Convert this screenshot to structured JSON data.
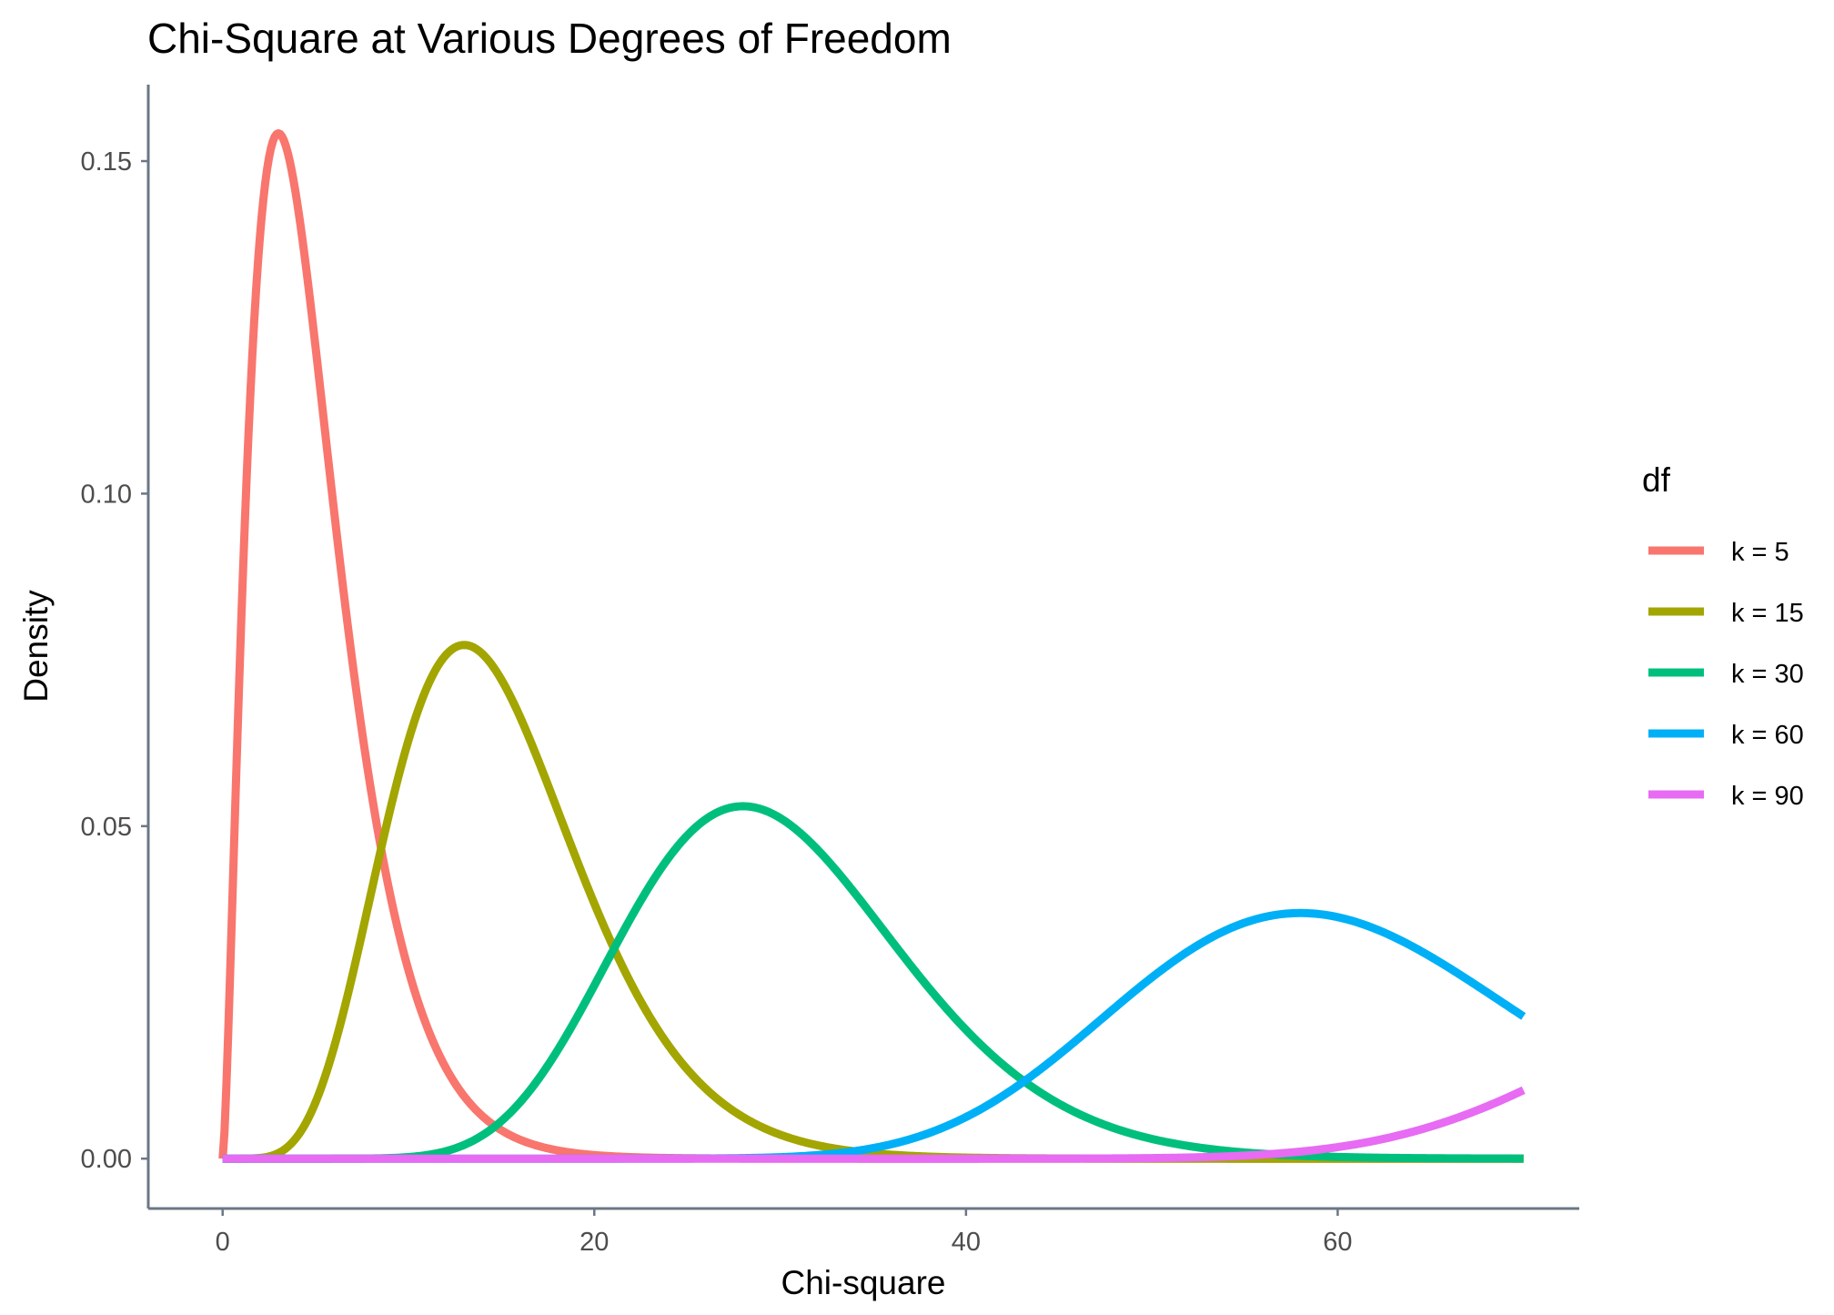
{
  "chart_data": {
    "type": "line",
    "title": "Chi-Square at Various Degrees of Freedom",
    "xlabel": "Chi-square",
    "ylabel": "Density",
    "xlim": [
      -4,
      73
    ],
    "ylim": [
      -0.0075,
      0.1615
    ],
    "x_range": [
      0,
      70
    ],
    "x_ticks": [
      0,
      20,
      40,
      60
    ],
    "x_tick_labels": [
      "0",
      "20",
      "40",
      "60"
    ],
    "y_ticks": [
      0.0,
      0.05,
      0.1,
      0.15
    ],
    "y_tick_labels": [
      "0.00",
      "0.05",
      "0.10",
      "0.15"
    ],
    "grid": false,
    "legend": {
      "title": "df",
      "placement": "right"
    },
    "series": [
      {
        "name": "k = 5",
        "df": 5,
        "color": "#F8766D"
      },
      {
        "name": "k = 15",
        "df": 15,
        "color": "#A3A500"
      },
      {
        "name": "k = 30",
        "df": 30,
        "color": "#00BF7D"
      },
      {
        "name": "k = 60",
        "df": 60,
        "color": "#00B0F6"
      },
      {
        "name": "k = 90",
        "df": 90,
        "color": "#E76BF3"
      }
    ]
  }
}
